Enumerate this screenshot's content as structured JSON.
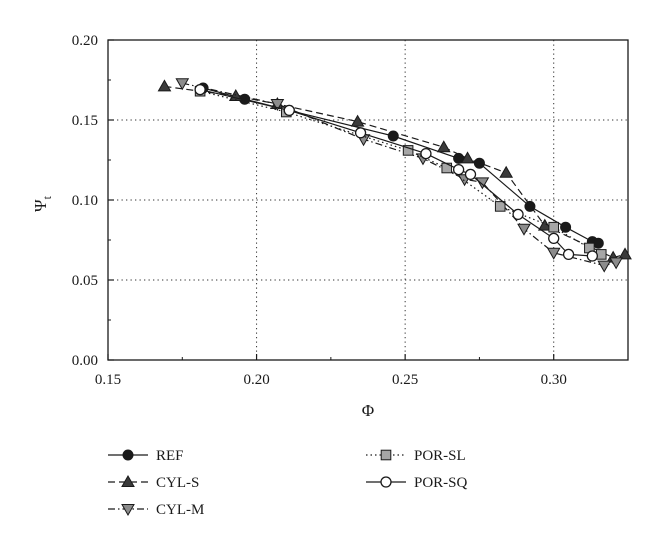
{
  "chart_data": {
    "type": "line",
    "title": "",
    "xlabel": "Φ",
    "ylabel": {
      "main": "Ψ",
      "sub": "t"
    },
    "xlim": [
      0.15,
      0.325
    ],
    "ylim": [
      0.0,
      0.2
    ],
    "xticks": [
      0.15,
      0.2,
      0.25,
      0.3
    ],
    "xtick_labels": [
      "0.15",
      "0.20",
      "0.25",
      "0.30"
    ],
    "yticks": [
      0.0,
      0.05,
      0.1,
      0.15,
      0.2
    ],
    "ytick_labels": [
      "0.00",
      "0.05",
      "0.10",
      "0.15",
      "0.20"
    ],
    "grid": true,
    "grid_style": "dotted",
    "legend_placement": "bottom",
    "series": [
      {
        "name": "REF",
        "marker": "circle-filled",
        "line": "solid",
        "color": "#1a1a1a",
        "x": [
          0.182,
          0.196,
          0.211,
          0.246,
          0.268,
          0.275,
          0.292,
          0.304,
          0.313,
          0.315
        ],
        "y": [
          0.17,
          0.163,
          0.156,
          0.14,
          0.126,
          0.123,
          0.096,
          0.083,
          0.074,
          0.073
        ]
      },
      {
        "name": "CYL-S",
        "marker": "triangle-up-filled",
        "line": "dashed",
        "color": "#1a1a1a",
        "x": [
          0.169,
          0.193,
          0.207,
          0.234,
          0.263,
          0.271,
          0.284,
          0.297,
          0.32,
          0.324
        ],
        "y": [
          0.171,
          0.165,
          0.16,
          0.149,
          0.133,
          0.126,
          0.117,
          0.084,
          0.064,
          0.066
        ]
      },
      {
        "name": "CYL-M",
        "marker": "triangle-down-gray",
        "line": "dashdot",
        "color": "#1a1a1a",
        "x": [
          0.175,
          0.207,
          0.236,
          0.256,
          0.27,
          0.276,
          0.29,
          0.3,
          0.317,
          0.321
        ],
        "y": [
          0.173,
          0.16,
          0.138,
          0.126,
          0.113,
          0.111,
          0.082,
          0.067,
          0.059,
          0.061
        ]
      },
      {
        "name": "POR-SL",
        "marker": "square-gray",
        "line": "dotted",
        "color": "#1a1a1a",
        "x": [
          0.181,
          0.21,
          0.251,
          0.264,
          0.282,
          0.3,
          0.312,
          0.316
        ],
        "y": [
          0.168,
          0.155,
          0.131,
          0.12,
          0.096,
          0.083,
          0.07,
          0.066
        ]
      },
      {
        "name": "POR-SQ",
        "marker": "circle-open",
        "line": "solid",
        "color": "#1a1a1a",
        "x": [
          0.181,
          0.211,
          0.235,
          0.257,
          0.268,
          0.272,
          0.288,
          0.3,
          0.305,
          0.313
        ],
        "y": [
          0.169,
          0.156,
          0.142,
          0.129,
          0.119,
          0.116,
          0.091,
          0.076,
          0.066,
          0.065
        ]
      }
    ]
  }
}
